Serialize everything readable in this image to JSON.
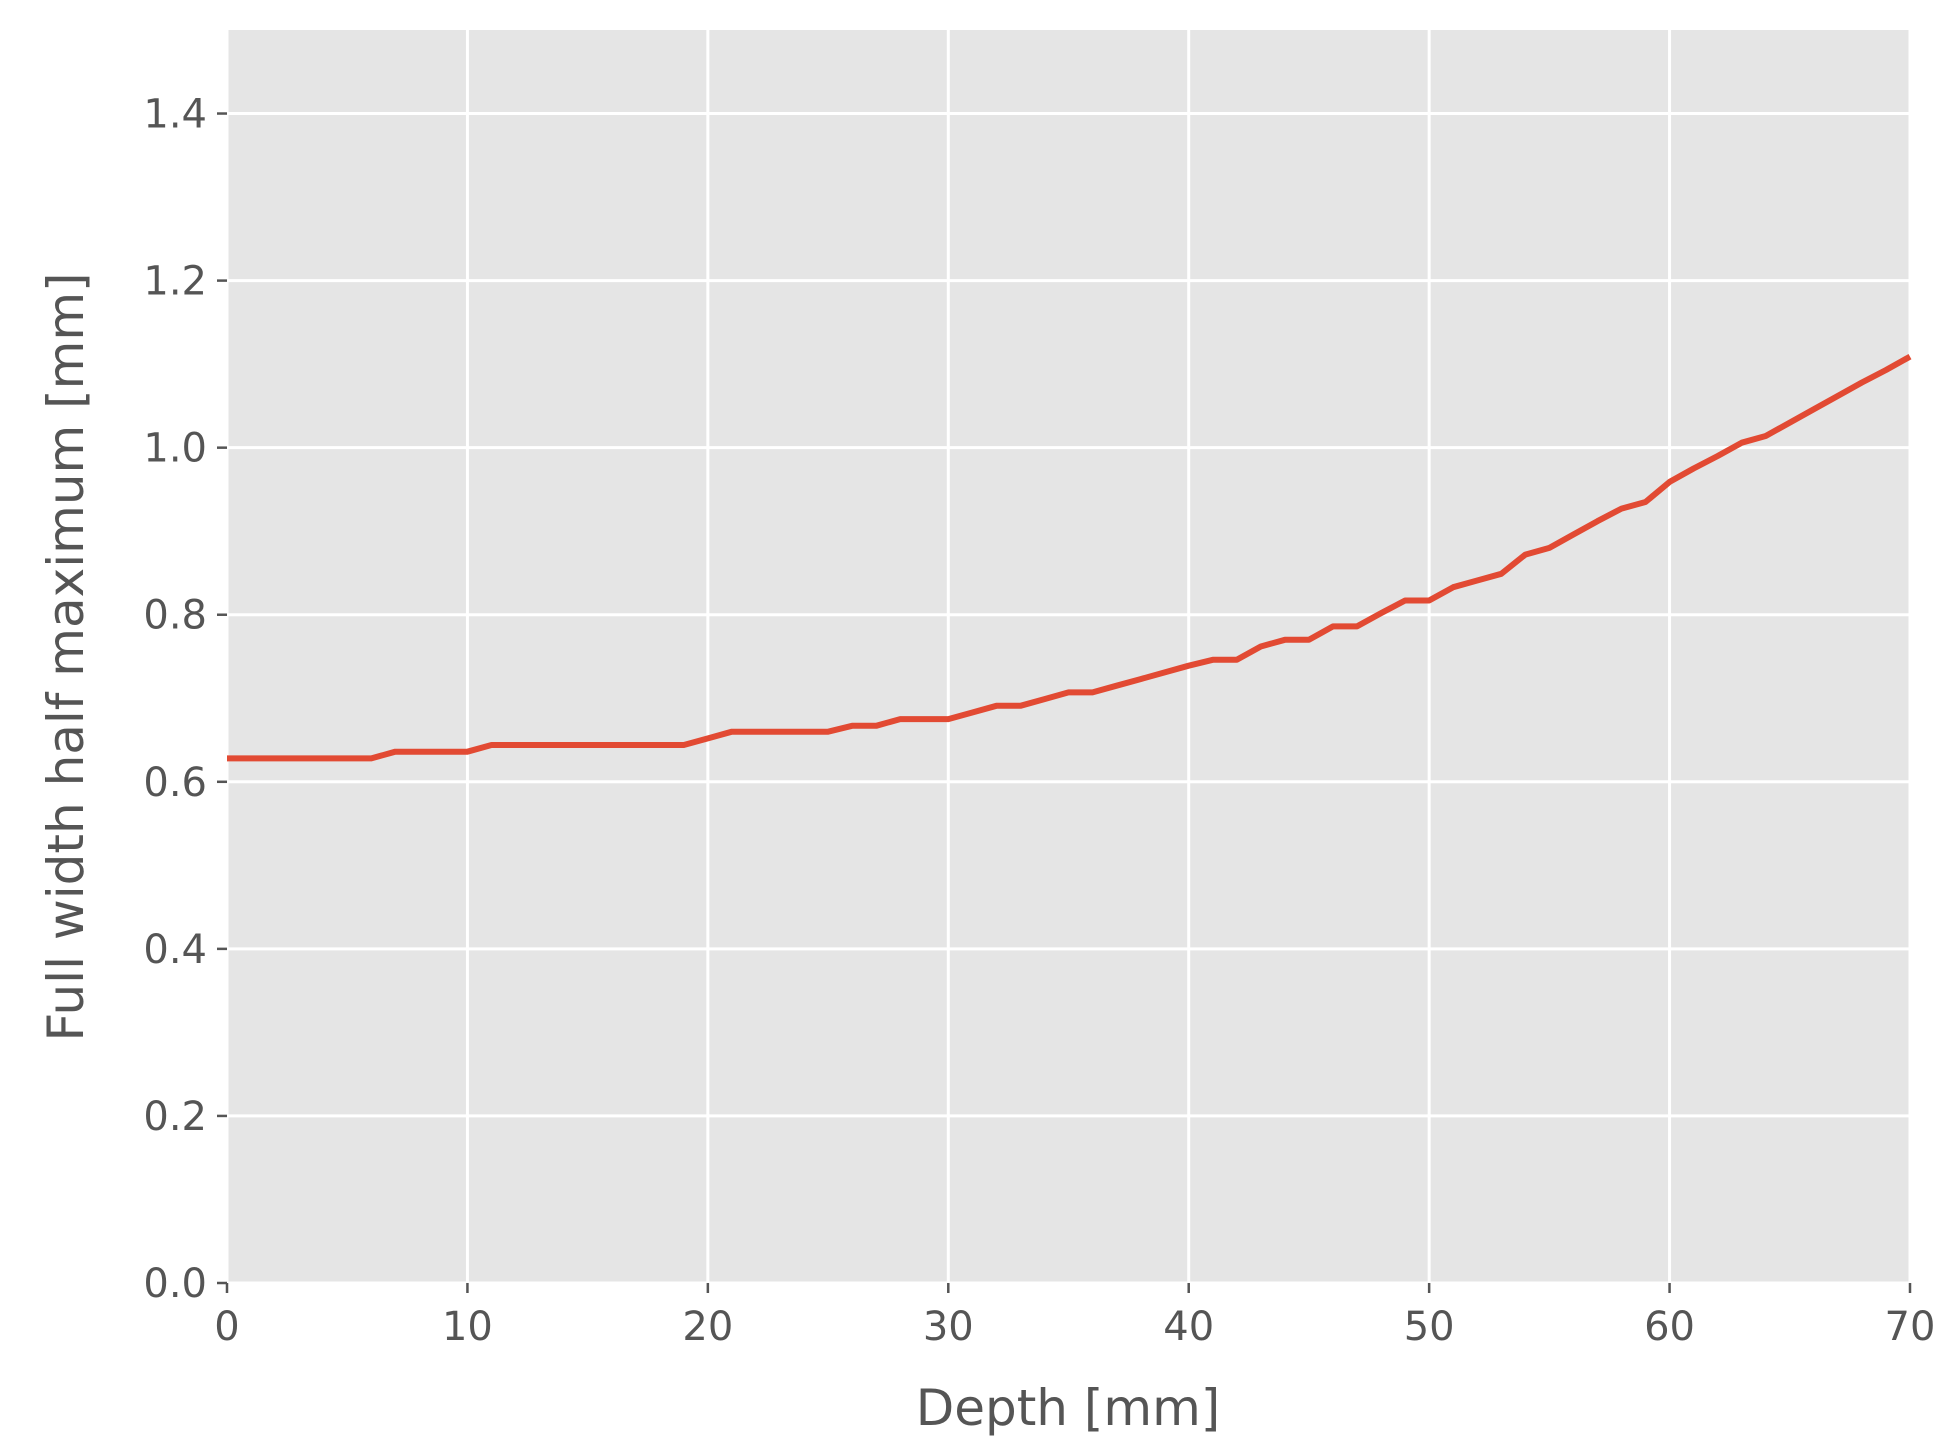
{
  "chart_data": {
    "type": "line",
    "title": "",
    "xlabel": "Depth [mm]",
    "ylabel": "Full width half maximum [mm]",
    "xlim": [
      0,
      70
    ],
    "ylim": [
      0,
      1.5
    ],
    "xticks": [
      0,
      10,
      20,
      30,
      40,
      50,
      60,
      70
    ],
    "xtick_labels": [
      "0",
      "10",
      "20",
      "30",
      "40",
      "50",
      "60",
      "70"
    ],
    "yticks": [
      0.0,
      0.2,
      0.4,
      0.6,
      0.8,
      1.0,
      1.2,
      1.4
    ],
    "ytick_labels": [
      "0.0",
      "0.2",
      "0.4",
      "0.6",
      "0.8",
      "1.0",
      "1.2",
      "1.4"
    ],
    "grid": true,
    "style": "ggplot",
    "colors": {
      "background": "#e5e5e5",
      "grid": "#ffffff",
      "line": "#e24a33",
      "text": "#555555"
    },
    "series": [
      {
        "x": [
          0,
          1,
          2,
          3,
          4,
          5,
          6,
          7,
          8,
          9,
          10,
          11,
          12,
          13,
          14,
          15,
          16,
          17,
          18,
          19,
          20,
          21,
          22,
          23,
          24,
          25,
          26,
          27,
          28,
          29,
          30,
          31,
          32,
          33,
          34,
          35,
          36,
          37,
          38,
          39,
          40,
          41,
          42,
          43,
          44,
          45,
          46,
          47,
          48,
          49,
          50,
          51,
          52,
          53,
          54,
          55,
          56,
          57,
          58,
          59,
          60,
          61,
          62,
          63,
          64,
          65,
          66,
          67,
          68,
          69,
          70
        ],
        "y": [
          0.628,
          0.628,
          0.628,
          0.628,
          0.628,
          0.628,
          0.628,
          0.636,
          0.636,
          0.636,
          0.636,
          0.644,
          0.644,
          0.644,
          0.644,
          0.644,
          0.644,
          0.644,
          0.644,
          0.644,
          0.652,
          0.66,
          0.66,
          0.66,
          0.66,
          0.66,
          0.667,
          0.667,
          0.675,
          0.675,
          0.675,
          0.683,
          0.691,
          0.691,
          0.699,
          0.707,
          0.707,
          0.715,
          0.723,
          0.731,
          0.739,
          0.746,
          0.746,
          0.762,
          0.77,
          0.77,
          0.786,
          0.786,
          0.802,
          0.817,
          0.817,
          0.833,
          0.841,
          0.849,
          0.872,
          0.88,
          0.896,
          0.912,
          0.927,
          0.935,
          0.959,
          0.975,
          0.99,
          1.006,
          1.014,
          1.03,
          1.046,
          1.062,
          1.078,
          1.093,
          1.109
        ]
      }
    ]
  }
}
